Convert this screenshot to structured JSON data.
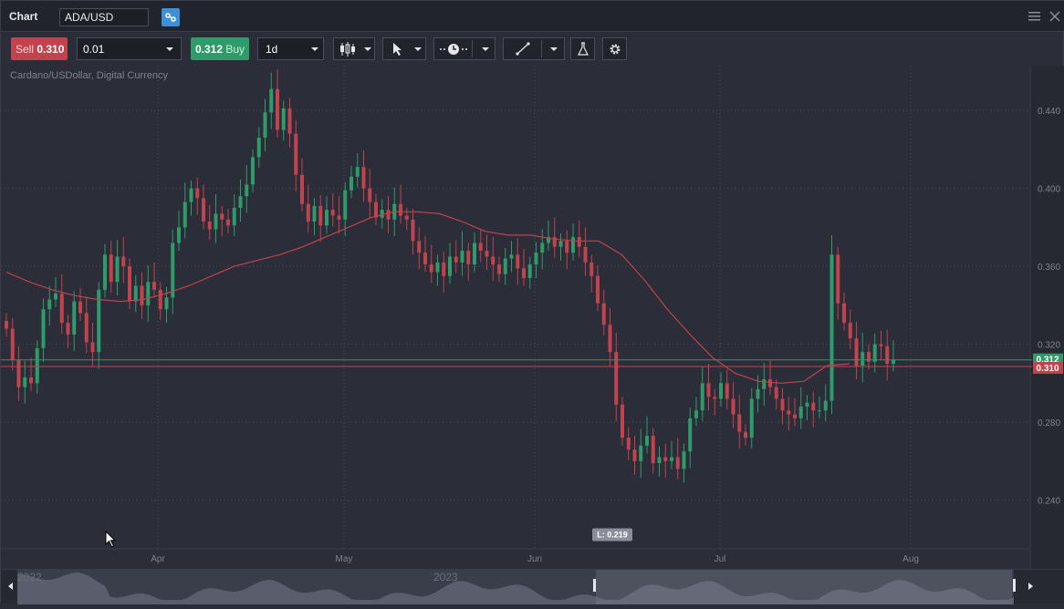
{
  "window": {
    "title": "Chart",
    "symbol": "ADA/USD",
    "description": "Cardano/USDollar, Digital Currency"
  },
  "toolbar": {
    "sell_label": "Sell",
    "sell_price": "0.310",
    "quantity": "0.01",
    "buy_price": "0.312",
    "buy_label": "Buy",
    "timeframe": "1d",
    "icons": [
      "candlestick-icon",
      "cursor-arrow-icon",
      "line-style-icon",
      "draw-line-icon",
      "indicators-flask-icon",
      "settings-gear-icon"
    ]
  },
  "colors": {
    "up": "#2f9a6a",
    "down": "#c0434e",
    "ma": "#c0434e",
    "background": "#2b2d38"
  },
  "chart_data": {
    "type": "candlestick",
    "instrument": "ADA/USD",
    "interval": "1d",
    "ylim": [
      0.215,
      0.463
    ],
    "y_ticks": [
      "0.240",
      "0.280",
      "0.320",
      "0.360",
      "0.400",
      "0.440"
    ],
    "x_ticks": [
      "Apr",
      "May",
      "Jun",
      "Jul",
      "Aug"
    ],
    "bid": 0.31,
    "ask": 0.312,
    "bid_label": "0.310",
    "ask_label": "0.312",
    "low_marker": "L: 0.219",
    "closes": [
      0.328,
      0.312,
      0.298,
      0.303,
      0.3,
      0.318,
      0.338,
      0.343,
      0.346,
      0.331,
      0.325,
      0.342,
      0.336,
      0.321,
      0.316,
      0.348,
      0.366,
      0.352,
      0.365,
      0.36,
      0.342,
      0.35,
      0.34,
      0.352,
      0.348,
      0.338,
      0.344,
      0.372,
      0.38,
      0.393,
      0.4,
      0.395,
      0.383,
      0.379,
      0.387,
      0.384,
      0.381,
      0.39,
      0.396,
      0.402,
      0.416,
      0.426,
      0.439,
      0.451,
      0.43,
      0.441,
      0.428,
      0.407,
      0.392,
      0.383,
      0.391,
      0.381,
      0.389,
      0.386,
      0.384,
      0.399,
      0.406,
      0.411,
      0.4,
      0.393,
      0.385,
      0.389,
      0.384,
      0.392,
      0.386,
      0.384,
      0.373,
      0.367,
      0.361,
      0.357,
      0.362,
      0.355,
      0.365,
      0.362,
      0.368,
      0.361,
      0.372,
      0.368,
      0.365,
      0.361,
      0.356,
      0.364,
      0.366,
      0.359,
      0.354,
      0.361,
      0.367,
      0.372,
      0.375,
      0.37,
      0.373,
      0.367,
      0.375,
      0.37,
      0.362,
      0.355,
      0.341,
      0.33,
      0.316,
      0.289,
      0.272,
      0.266,
      0.26,
      0.268,
      0.273,
      0.259,
      0.262,
      0.26,
      0.262,
      0.256,
      0.265,
      0.282,
      0.286,
      0.3,
      0.293,
      0.292,
      0.3,
      0.292,
      0.284,
      0.275,
      0.272,
      0.292,
      0.297,
      0.302,
      0.298,
      0.292,
      0.286,
      0.284,
      0.282,
      0.288,
      0.29,
      0.286,
      0.286,
      0.291,
      0.366,
      0.341,
      0.331,
      0.323,
      0.309,
      0.316,
      0.311,
      0.32,
      0.319,
      0.31,
      0.312
    ],
    "moving_average": {
      "values": [
        0.357,
        0.352,
        0.348,
        0.345,
        0.343,
        0.342,
        0.343,
        0.346,
        0.35,
        0.355,
        0.36,
        0.363,
        0.366,
        0.37,
        0.375,
        0.38,
        0.385,
        0.388,
        0.388,
        0.387,
        0.383,
        0.378,
        0.376,
        0.376,
        0.374,
        0.373,
        0.373,
        0.366,
        0.353,
        0.338,
        0.325,
        0.313,
        0.305,
        0.301,
        0.3,
        0.301,
        0.309,
        0.31
      ]
    }
  },
  "navigator": {
    "year_labels": [
      "2022",
      "2023"
    ]
  }
}
